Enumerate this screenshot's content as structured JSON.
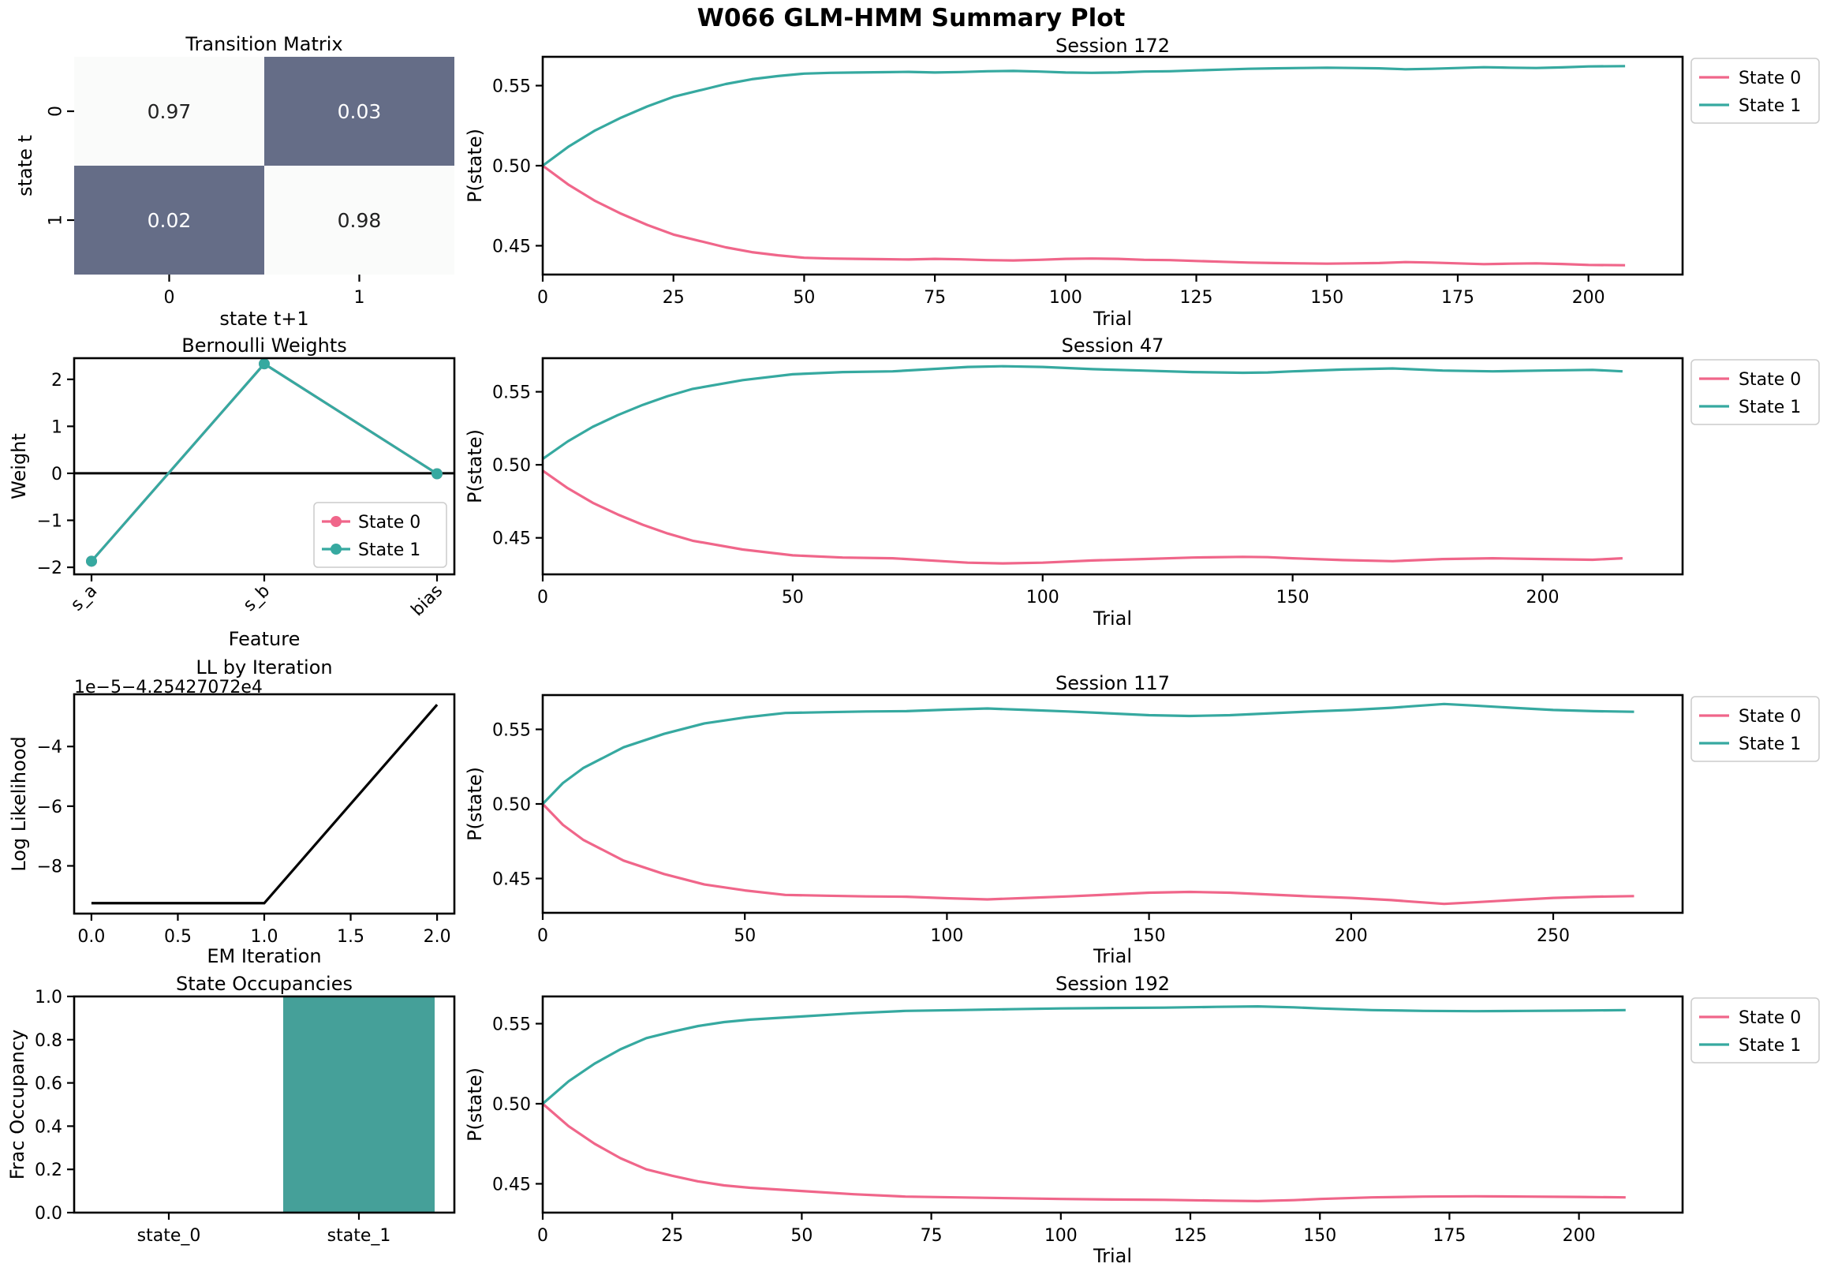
{
  "title": "W066 GLM-HMM Summary Plot",
  "colors": {
    "state0": "#f0668a",
    "state1": "#36a9a0",
    "heat_high": "#fafbfa",
    "heat_low": "#656d87",
    "bar": "#45a099",
    "zero_line": "#000000"
  },
  "chart_data": [
    {
      "id": "transition",
      "type": "heatmap",
      "title": "Transition Matrix",
      "xlabel": "state t+1",
      "ylabel": "state t",
      "xticklabels": [
        "0",
        "1"
      ],
      "yticklabels": [
        "0",
        "1"
      ],
      "matrix": [
        [
          0.97,
          0.03
        ],
        [
          0.02,
          0.98
        ]
      ],
      "cell_labels": [
        [
          "0.97",
          "0.03"
        ],
        [
          "0.02",
          "0.98"
        ]
      ]
    },
    {
      "id": "weights",
      "type": "line",
      "title": "Bernoulli Weights",
      "xlabel": "Feature",
      "ylabel": "Weight",
      "categories": [
        "s_a",
        "s_b",
        "bias"
      ],
      "ylim": [
        -2.15,
        2.45
      ],
      "yticks": [
        -2,
        -1,
        0,
        1,
        2
      ],
      "yticklabels": [
        "−2",
        "−1",
        "0",
        "1",
        "2"
      ],
      "series": [
        {
          "name": "State 0",
          "values": [
            -1.87,
            2.33,
            -0.01
          ]
        },
        {
          "name": "State 1",
          "values": [
            -1.87,
            2.33,
            -0.01
          ]
        }
      ],
      "legend": "lower-right"
    },
    {
      "id": "ll",
      "type": "line",
      "title": "LL by Iteration",
      "offset_label": "1e−5−4.25427072e4",
      "xlabel": "EM Iteration",
      "ylabel": "Log Likelihood",
      "x": [
        0,
        1,
        2
      ],
      "y": [
        -9.25,
        -9.25,
        -2.6
      ],
      "xlim": [
        -0.1,
        2.1
      ],
      "ylim": [
        -9.6,
        -2.25
      ],
      "xticks": [
        0,
        0.5,
        1,
        1.5,
        2
      ],
      "xticklabels": [
        "0.0",
        "0.5",
        "1.0",
        "1.5",
        "2.0"
      ],
      "yticks": [
        -8,
        -6,
        -4
      ],
      "yticklabels": [
        "−8",
        "−6",
        "−4"
      ]
    },
    {
      "id": "occupancy",
      "type": "bar",
      "title": "State Occupancies",
      "xlabel": "",
      "ylabel": "Frac Occupancy",
      "categories": [
        "state_0",
        "state_1"
      ],
      "values": [
        0.0,
        1.0
      ],
      "ylim": [
        0,
        1
      ],
      "yticks": [
        0,
        0.2,
        0.4,
        0.6,
        0.8,
        1.0
      ],
      "yticklabels": [
        "0.0",
        "0.2",
        "0.4",
        "0.6",
        "0.8",
        "1.0"
      ]
    },
    {
      "id": "s172",
      "type": "line",
      "title": "Session 172",
      "xlabel": "Trial",
      "ylabel": "P(state)",
      "xlim": [
        0,
        218
      ],
      "ylim": [
        0.432,
        0.568
      ],
      "xticks": [
        0,
        25,
        50,
        75,
        100,
        125,
        150,
        175,
        200
      ],
      "yticks": [
        0.45,
        0.5,
        0.55
      ],
      "yticklabels": [
        "0.45",
        "0.50",
        "0.55"
      ],
      "legend": "outside-upper-right",
      "series": [
        {
          "name": "State 0",
          "x": [
            0,
            5,
            10,
            15,
            20,
            25,
            30,
            35,
            40,
            45,
            50,
            55,
            60,
            65,
            70,
            75,
            80,
            85,
            90,
            95,
            100,
            105,
            110,
            115,
            120,
            125,
            130,
            135,
            140,
            145,
            150,
            155,
            160,
            165,
            170,
            175,
            180,
            185,
            190,
            195,
            200,
            207
          ],
          "y": [
            0.5,
            0.488,
            0.478,
            0.47,
            0.463,
            0.457,
            0.453,
            0.449,
            0.446,
            0.444,
            0.4425,
            0.442,
            0.4418,
            0.4416,
            0.4414,
            0.4418,
            0.4415,
            0.441,
            0.4408,
            0.4412,
            0.4418,
            0.442,
            0.4418,
            0.4412,
            0.441,
            0.4405,
            0.44,
            0.4395,
            0.4392,
            0.439,
            0.4388,
            0.439,
            0.4392,
            0.4398,
            0.4395,
            0.439,
            0.4385,
            0.4388,
            0.439,
            0.4386,
            0.438,
            0.4378
          ]
        },
        {
          "name": "State 1",
          "x": [
            0,
            5,
            10,
            15,
            20,
            25,
            30,
            35,
            40,
            45,
            50,
            55,
            60,
            65,
            70,
            75,
            80,
            85,
            90,
            95,
            100,
            105,
            110,
            115,
            120,
            125,
            130,
            135,
            140,
            145,
            150,
            155,
            160,
            165,
            170,
            175,
            180,
            185,
            190,
            195,
            200,
            207
          ],
          "y": [
            0.5,
            0.512,
            0.522,
            0.53,
            0.537,
            0.543,
            0.547,
            0.551,
            0.554,
            0.556,
            0.5575,
            0.558,
            0.5582,
            0.5584,
            0.5586,
            0.5582,
            0.5585,
            0.559,
            0.5592,
            0.5588,
            0.5582,
            0.558,
            0.5582,
            0.5588,
            0.559,
            0.5595,
            0.56,
            0.5605,
            0.5608,
            0.561,
            0.5612,
            0.561,
            0.5608,
            0.5602,
            0.5605,
            0.561,
            0.5615,
            0.5612,
            0.561,
            0.5614,
            0.562,
            0.5622
          ]
        }
      ]
    },
    {
      "id": "s47",
      "type": "line",
      "title": "Session 47",
      "xlabel": "Trial",
      "ylabel": "P(state)",
      "xlim": [
        0,
        228
      ],
      "ylim": [
        0.425,
        0.573
      ],
      "xticks": [
        0,
        50,
        100,
        150,
        200
      ],
      "yticks": [
        0.45,
        0.5,
        0.55
      ],
      "yticklabels": [
        "0.45",
        "0.50",
        "0.55"
      ],
      "legend": "outside-upper-right",
      "series": [
        {
          "name": "State 0",
          "x": [
            0,
            5,
            10,
            15,
            20,
            25,
            30,
            40,
            50,
            60,
            70,
            80,
            85,
            92,
            100,
            110,
            120,
            130,
            140,
            145,
            150,
            160,
            170,
            180,
            190,
            200,
            210,
            216
          ],
          "y": [
            0.496,
            0.484,
            0.474,
            0.466,
            0.459,
            0.453,
            0.448,
            0.442,
            0.438,
            0.4365,
            0.436,
            0.434,
            0.433,
            0.4325,
            0.433,
            0.4345,
            0.4355,
            0.4365,
            0.437,
            0.4368,
            0.436,
            0.4348,
            0.434,
            0.4355,
            0.436,
            0.4355,
            0.435,
            0.436
          ]
        },
        {
          "name": "State 1",
          "x": [
            0,
            5,
            10,
            15,
            20,
            25,
            30,
            40,
            50,
            60,
            70,
            80,
            85,
            92,
            100,
            110,
            120,
            130,
            140,
            145,
            150,
            160,
            170,
            180,
            190,
            200,
            210,
            216
          ],
          "y": [
            0.504,
            0.516,
            0.526,
            0.534,
            0.541,
            0.547,
            0.552,
            0.558,
            0.562,
            0.5635,
            0.564,
            0.566,
            0.567,
            0.5675,
            0.567,
            0.5655,
            0.5645,
            0.5635,
            0.563,
            0.5632,
            0.564,
            0.5652,
            0.566,
            0.5645,
            0.564,
            0.5645,
            0.565,
            0.564
          ]
        }
      ]
    },
    {
      "id": "s117",
      "type": "line",
      "title": "Session 117",
      "xlabel": "Trial",
      "ylabel": "P(state)",
      "xlim": [
        0,
        282
      ],
      "ylim": [
        0.427,
        0.573
      ],
      "xticks": [
        0,
        50,
        100,
        150,
        200,
        250
      ],
      "yticks": [
        0.45,
        0.5,
        0.55
      ],
      "yticklabels": [
        "0.45",
        "0.50",
        "0.55"
      ],
      "legend": "outside-upper-right",
      "series": [
        {
          "name": "State 0",
          "x": [
            0,
            5,
            10,
            20,
            30,
            40,
            50,
            60,
            70,
            80,
            90,
            100,
            110,
            120,
            130,
            140,
            150,
            160,
            170,
            180,
            190,
            200,
            210,
            215,
            223,
            230,
            240,
            250,
            260,
            270
          ],
          "y": [
            0.5,
            0.486,
            0.476,
            0.462,
            0.453,
            0.446,
            0.442,
            0.439,
            0.4385,
            0.438,
            0.4378,
            0.4368,
            0.436,
            0.437,
            0.438,
            0.4392,
            0.4405,
            0.441,
            0.4405,
            0.4392,
            0.438,
            0.437,
            0.4355,
            0.4345,
            0.433,
            0.434,
            0.4355,
            0.437,
            0.4378,
            0.4382
          ]
        },
        {
          "name": "State 1",
          "x": [
            0,
            5,
            10,
            20,
            30,
            40,
            50,
            60,
            70,
            80,
            90,
            100,
            110,
            120,
            130,
            140,
            150,
            160,
            170,
            180,
            190,
            200,
            210,
            215,
            223,
            230,
            240,
            250,
            260,
            270
          ],
          "y": [
            0.5,
            0.514,
            0.524,
            0.538,
            0.547,
            0.554,
            0.558,
            0.561,
            0.5615,
            0.562,
            0.5622,
            0.5632,
            0.564,
            0.563,
            0.562,
            0.5608,
            0.5595,
            0.559,
            0.5595,
            0.5608,
            0.562,
            0.563,
            0.5645,
            0.5655,
            0.567,
            0.566,
            0.5645,
            0.563,
            0.5622,
            0.5618
          ]
        }
      ]
    },
    {
      "id": "s192",
      "type": "line",
      "title": "Session 192",
      "xlabel": "Trial",
      "ylabel": "P(state)",
      "xlim": [
        0,
        220
      ],
      "ylim": [
        0.432,
        0.567
      ],
      "xticks": [
        0,
        25,
        50,
        75,
        100,
        125,
        150,
        175,
        200
      ],
      "yticks": [
        0.45,
        0.5,
        0.55
      ],
      "yticklabels": [
        "0.45",
        "0.50",
        "0.55"
      ],
      "legend": "outside-upper-right",
      "series": [
        {
          "name": "State 0",
          "x": [
            0,
            5,
            10,
            15,
            20,
            25,
            30,
            35,
            40,
            50,
            60,
            70,
            80,
            90,
            100,
            110,
            120,
            130,
            138,
            145,
            150,
            160,
            170,
            180,
            190,
            200,
            209
          ],
          "y": [
            0.5,
            0.486,
            0.475,
            0.466,
            0.459,
            0.455,
            0.4515,
            0.449,
            0.4475,
            0.4455,
            0.4435,
            0.442,
            0.4415,
            0.441,
            0.4405,
            0.4402,
            0.44,
            0.4395,
            0.4392,
            0.4398,
            0.4405,
            0.4415,
            0.442,
            0.4422,
            0.442,
            0.4418,
            0.4415
          ]
        },
        {
          "name": "State 1",
          "x": [
            0,
            5,
            10,
            15,
            20,
            25,
            30,
            35,
            40,
            50,
            60,
            70,
            80,
            90,
            100,
            110,
            120,
            130,
            138,
            145,
            150,
            160,
            170,
            180,
            190,
            200,
            209
          ],
          "y": [
            0.5,
            0.514,
            0.525,
            0.534,
            0.541,
            0.545,
            0.5485,
            0.551,
            0.5525,
            0.5545,
            0.5565,
            0.558,
            0.5585,
            0.559,
            0.5595,
            0.5598,
            0.56,
            0.5605,
            0.5608,
            0.5602,
            0.5595,
            0.5585,
            0.558,
            0.5578,
            0.558,
            0.5582,
            0.5585
          ]
        }
      ]
    }
  ]
}
